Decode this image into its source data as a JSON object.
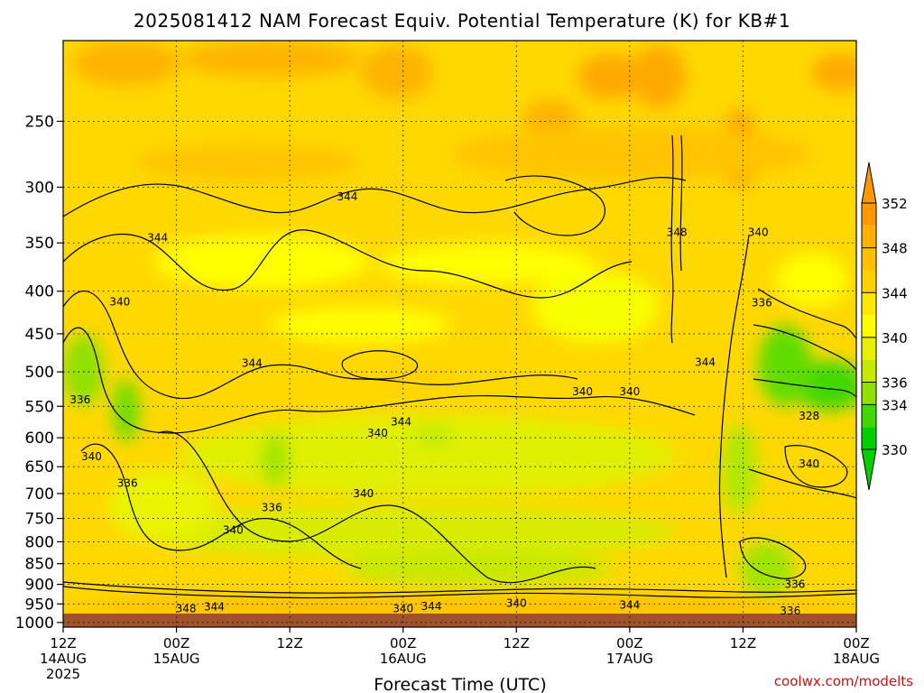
{
  "chart_data": {
    "type": "heatmap",
    "title": "2025081412 NAM Forecast Equiv. Potential Temperature (K) for KB#1",
    "xlabel": "Forecast Time (UTC)",
    "ylabel": "",
    "credit": "coolwx.com/modelts",
    "y_axis": {
      "scale": "log",
      "range": [
        1013,
        200
      ],
      "ticks": [
        250,
        300,
        350,
        400,
        450,
        500,
        550,
        600,
        650,
        700,
        750,
        800,
        850,
        900,
        950,
        1000
      ]
    },
    "x_axis": {
      "range": [
        0,
        84
      ],
      "ticks": [
        {
          "hour": 0,
          "line1": "12Z",
          "line2": "14AUG",
          "line3": "2025"
        },
        {
          "hour": 12,
          "line1": "00Z",
          "line2": "15AUG",
          "line3": ""
        },
        {
          "hour": 24,
          "line1": "12Z",
          "line2": "",
          "line3": ""
        },
        {
          "hour": 36,
          "line1": "00Z",
          "line2": "16AUG",
          "line3": ""
        },
        {
          "hour": 48,
          "line1": "12Z",
          "line2": "",
          "line3": ""
        },
        {
          "hour": 60,
          "line1": "00Z",
          "line2": "17AUG",
          "line3": ""
        },
        {
          "hour": 72,
          "line1": "12Z",
          "line2": "",
          "line3": ""
        },
        {
          "hour": 84,
          "line1": "00Z",
          "line2": "18AUG",
          "line3": ""
        }
      ]
    },
    "grid": true,
    "colorbar": {
      "levels": [
        330,
        332,
        334,
        336,
        338,
        340,
        342,
        344,
        346,
        348,
        350,
        352
      ],
      "labels": [
        "352",
        "348",
        "344",
        "340",
        "336",
        "334",
        "330"
      ],
      "label_values": [
        352,
        348,
        344,
        340,
        336,
        334,
        330
      ],
      "colors": [
        "#00d000",
        "#40d800",
        "#90e000",
        "#c8e800",
        "#e8f000",
        "#ffff00",
        "#ffe800",
        "#ffd000",
        "#ffc000",
        "#ffb000",
        "#ff9800"
      ],
      "placement": "right"
    },
    "contour_labels": [
      {
        "text": "344",
        "hour": 30.1,
        "p": 308
      },
      {
        "text": "344",
        "hour": 10.0,
        "p": 345
      },
      {
        "text": "340",
        "hour": 6.0,
        "p": 412
      },
      {
        "text": "336",
        "hour": 1.8,
        "p": 540
      },
      {
        "text": "340",
        "hour": 3.0,
        "p": 632
      },
      {
        "text": "336",
        "hour": 6.8,
        "p": 680
      },
      {
        "text": "344",
        "hour": 20.0,
        "p": 488
      },
      {
        "text": "340",
        "hour": 18.0,
        "p": 775
      },
      {
        "text": "336",
        "hour": 22.1,
        "p": 728
      },
      {
        "text": "340",
        "hour": 31.8,
        "p": 700
      },
      {
        "text": "344",
        "hour": 35.8,
        "p": 574
      },
      {
        "text": "340",
        "hour": 33.3,
        "p": 592
      },
      {
        "text": "340",
        "hour": 55.0,
        "p": 528
      },
      {
        "text": "340",
        "hour": 60.0,
        "p": 528
      },
      {
        "text": "348",
        "hour": 65.0,
        "p": 340
      },
      {
        "text": "340",
        "hour": 73.6,
        "p": 340
      },
      {
        "text": "336",
        "hour": 74.0,
        "p": 413
      },
      {
        "text": "344",
        "hour": 68.0,
        "p": 487
      },
      {
        "text": "328",
        "hour": 79.0,
        "p": 565
      },
      {
        "text": "340",
        "hour": 79.0,
        "p": 645
      },
      {
        "text": "336",
        "hour": 77.5,
        "p": 900
      },
      {
        "text": "348",
        "hour": 13.0,
        "p": 963
      },
      {
        "text": "344",
        "hour": 16.0,
        "p": 958
      },
      {
        "text": "340",
        "hour": 36.0,
        "p": 962
      },
      {
        "text": "344",
        "hour": 39.0,
        "p": 957
      },
      {
        "text": "340",
        "hour": 48.0,
        "p": 948
      },
      {
        "text": "344",
        "hour": 60.0,
        "p": 953
      },
      {
        "text": "336",
        "hour": 77.0,
        "p": 968
      }
    ]
  }
}
